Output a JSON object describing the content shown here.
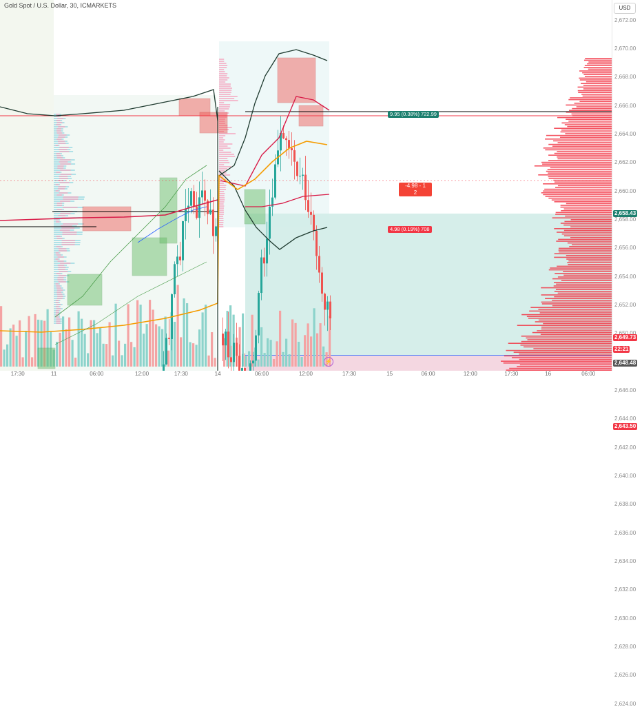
{
  "symbol": {
    "title": "Gold Spot / U.S. Dollar, 30, ICMARKETS"
  },
  "currency": "USD",
  "price_axis": {
    "ticks": [
      "2,672.00",
      "2,670.00",
      "2,668.00",
      "2,666.00",
      "2,664.00",
      "2,662.00",
      "2,660.00",
      "2,658.00",
      "2,656.00",
      "2,654.00",
      "2,652.00",
      "2,650.00",
      "2,648.00",
      "2,646.00",
      "2,644.00",
      "2,642.00",
      "2,640.00",
      "2,638.00",
      "2,636.00",
      "2,634.00",
      "2,632.00",
      "2,630.00",
      "2,628.00",
      "2,626.00",
      "2,624.00"
    ],
    "tick_values": [
      2672,
      2670,
      2668,
      2666,
      2664,
      2662,
      2660,
      2658,
      2656,
      2654,
      2652,
      2650,
      2648,
      2646,
      2644,
      2642,
      2640,
      2638,
      2636,
      2634,
      2632,
      2630,
      2628,
      2626,
      2624
    ],
    "price_tags": [
      {
        "label": "2,658.43",
        "value": 2658.43,
        "color": "#1b7f6e"
      },
      {
        "label": "2,649.73",
        "value": 2649.73,
        "color": "#f23645"
      },
      {
        "label": "22:21",
        "value": 2648.9,
        "color": "#f23645"
      },
      {
        "label": "2,648.48",
        "value": 2647.95,
        "color": "#555555"
      },
      {
        "label": "2,643.50",
        "value": 2643.5,
        "color": "#f23645"
      }
    ]
  },
  "time_axis": {
    "labels": [
      "17:30",
      "11",
      "06:00",
      "12:00",
      "17:30",
      "14",
      "06:00",
      "12:00",
      "17:30",
      "15",
      "06:00",
      "12:00",
      "17:30",
      "16",
      "06:00"
    ],
    "x_fraction": [
      0.029,
      0.088,
      0.158,
      0.232,
      0.296,
      0.356,
      0.428,
      0.5,
      0.571,
      0.637,
      0.7,
      0.769,
      0.836,
      0.896,
      0.962
    ]
  },
  "position": {
    "entry": 2648.48,
    "target": 2658.43,
    "stop": 2643.5,
    "target_label": "9.95 (0.38%) 722.99",
    "stop_label": "4.98 (0.19%) 708",
    "center_label_line1": "-4.98 - 1",
    "center_label_line2": "2"
  },
  "colors": {
    "bull": "#26a69a",
    "bear": "#ef5350",
    "profit_zone": "#d2ece8",
    "loss_zone": "#f3d3de",
    "volume_profile": "#f23645",
    "ema_red": "#d81b47",
    "ema_orange": "#f59c00",
    "envelope": "#1e3a2f"
  },
  "chart_data": {
    "type": "candlestick",
    "title": "Gold Spot / U.S. Dollar, 30, ICMARKETS",
    "ylim": [
      2624,
      2673
    ],
    "y_unit": "USD",
    "last_price": 2649.73
  }
}
